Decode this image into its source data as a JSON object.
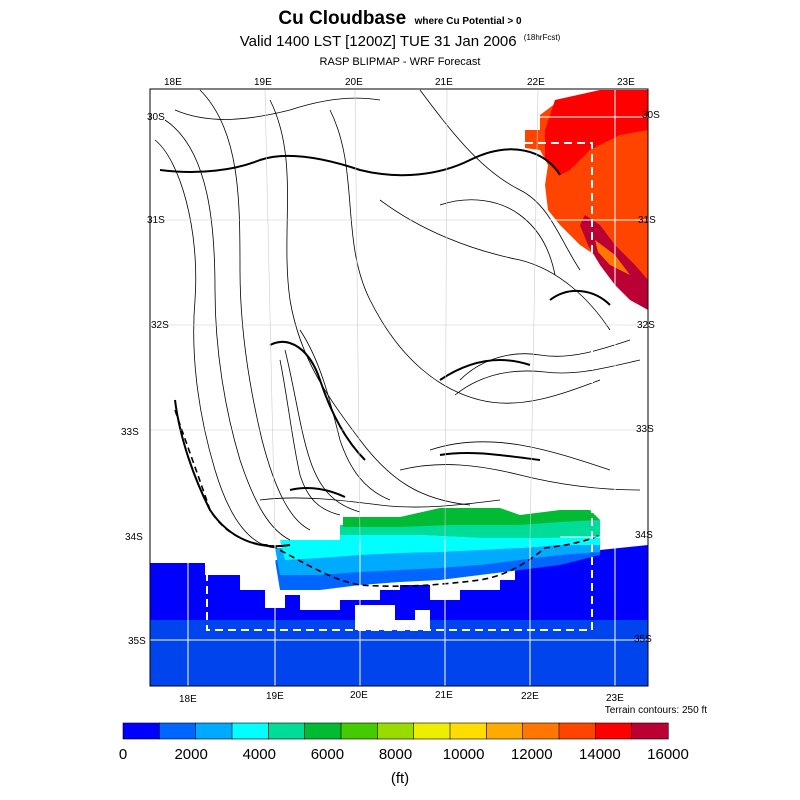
{
  "header": {
    "title": "Cu Cloudbase",
    "title_note": "where Cu Potential > 0",
    "valid_line": "Valid 1400 LST [1200Z] TUE 31 Jan 2006",
    "forecast_note": "(18hrFcst)",
    "source": "RASP BLIPMAP - WRF Forecast"
  },
  "map": {
    "lon_labels_top": [
      "18E",
      "19E",
      "20E",
      "21E",
      "22E",
      "23E"
    ],
    "lon_labels_bottom": [
      "18E",
      "19E",
      "20E",
      "21E",
      "22E",
      "23E"
    ],
    "lat_labels_left": [
      "30S",
      "31S",
      "32S",
      "33S",
      "34S",
      "35S"
    ],
    "lat_labels_right": [
      "30S",
      "31S",
      "32S",
      "33S",
      "34S",
      "35S"
    ],
    "terrain_note": "Terrain contours: 250 ft"
  },
  "colorbar": {
    "tick_labels": [
      "0",
      "2000",
      "4000",
      "6000",
      "8000",
      "10000",
      "12000",
      "14000",
      "16000"
    ],
    "unit": "(ft)",
    "colors": [
      "#0000ff",
      "#0066ff",
      "#00aaff",
      "#00ffff",
      "#00dd99",
      "#00bb33",
      "#44cc00",
      "#99dd00",
      "#eeee00",
      "#ffdd00",
      "#ffaa00",
      "#ff7700",
      "#ff4400",
      "#ff0000",
      "#bb0033"
    ]
  }
}
